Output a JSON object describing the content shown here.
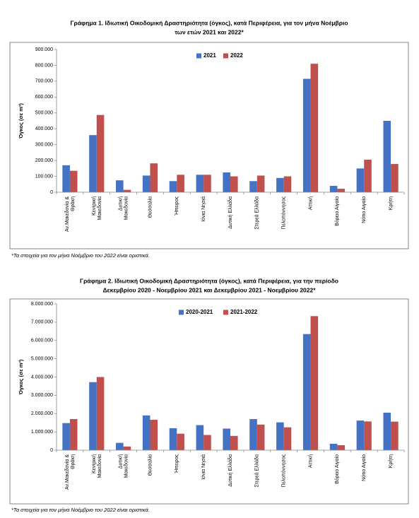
{
  "chart_data": [
    {
      "type": "bar",
      "title": [
        "Γράφημα 1.  Ιδιωτική Οικοδομική Δραστηριότητα (όγκος), κατά Περιφέρεια, για τον μήνα Νοέμβριο",
        "των ετών 2021 και 2022*"
      ],
      "y_label": "Όγκος (σε m³)",
      "categories": [
        "Αν.Μακεδονία & Θράκη",
        "Κεντρική Μακεδονία",
        "Δυτική Μακεδονία",
        "Θεσσαλία",
        "Ήπειρος",
        "Ιόνια Νησιά",
        "Δυτική Ελλάδα",
        "Στερεά Ελλάδα",
        "Πελοπόννησος",
        "Αττική",
        "Βόρειο Αιγαίο",
        "Νότιο Αιγαίο",
        "Κρήτη"
      ],
      "series": [
        {
          "name": "2021",
          "color": "#4472c4",
          "values": [
            170000,
            360000,
            75000,
            105000,
            70000,
            110000,
            125000,
            70000,
            90000,
            715000,
            40000,
            150000,
            450000
          ]
        },
        {
          "name": "2022",
          "color": "#c0504d",
          "values": [
            135000,
            487000,
            15000,
            182000,
            110000,
            110000,
            100000,
            105000,
            100000,
            810000,
            22000,
            205000,
            178000
          ]
        }
      ],
      "ylim": [
        0,
        900000
      ],
      "yticks": [
        0,
        {
          "value": 100000,
          "label": "100.000"
        },
        {
          "value": 200000,
          "label": "200.000"
        },
        {
          "value": 300000,
          "label": "300.000"
        },
        {
          "value": 400000,
          "label": "400.000"
        },
        {
          "value": 500000,
          "label": "500.000"
        },
        {
          "value": 600000,
          "label": "600.000"
        },
        {
          "value": 700000,
          "label": "700.000"
        },
        {
          "value": 800000,
          "label": "800.000"
        },
        {
          "value": 900000,
          "label": "900.000"
        }
      ],
      "grid": false,
      "legend": "top",
      "note": "*Τα στοιχεία για τον μήνα Νοέμβριο του 2022 είναι οριστικά."
    },
    {
      "type": "bar",
      "title": [
        "Γράφημα 2.  Ιδιωτική Οικοδομική Δραστηριότητα (όγκος), κατά Περιφέρεια, για την περίοδο",
        "Δεκεμβρίου 2020 - Νοεμβρίου 2021 και Δεκεμβρίου 2021 - Νοεμβρίου 2022*"
      ],
      "y_label": "Όγκος (σε m³)",
      "categories": [
        "Αν.Μακεδονία & Θράκη",
        "Κεντρική Μακεδονία",
        "Δυτική Μακεδονία",
        "Θεσσαλία",
        "Ήπειρος",
        "Ιόνια Νησιά",
        "Δυτική Ελλάδα",
        "Στερεά Ελλάδα",
        "Πελοπόννησος",
        "Αττική",
        "Βόρειο Αιγαίο",
        "Νότιο Αιγαίο",
        "Κρήτη"
      ],
      "series": [
        {
          "name": "2020-2021",
          "color": "#4472c4",
          "values": [
            1480000,
            3720000,
            400000,
            1900000,
            1200000,
            1370000,
            1180000,
            1700000,
            1520000,
            6350000,
            350000,
            1620000,
            2050000
          ]
        },
        {
          "name": "2021-2022",
          "color": "#c0504d",
          "values": [
            1700000,
            4000000,
            200000,
            1660000,
            900000,
            830000,
            780000,
            1400000,
            1250000,
            7330000,
            270000,
            1570000,
            1560000
          ]
        }
      ],
      "ylim": [
        0,
        8000000
      ],
      "yticks": [
        0,
        {
          "value": 1000000,
          "label": "1.000.000"
        },
        {
          "value": 2000000,
          "label": "2.000.000"
        },
        {
          "value": 3000000,
          "label": "3.000.000"
        },
        {
          "value": 4000000,
          "label": "4.000.000"
        },
        {
          "value": 5000000,
          "label": "5.000.000"
        },
        {
          "value": 6000000,
          "label": "6.000.000"
        },
        {
          "value": 7000000,
          "label": "7.000.000"
        },
        {
          "value": 8000000,
          "label": "8.000.000"
        }
      ],
      "grid": false,
      "legend": "top",
      "note": "*Τα στοιχεία για τον μήνα Νοέμβριο του 2022 είναι οριστικά."
    }
  ]
}
